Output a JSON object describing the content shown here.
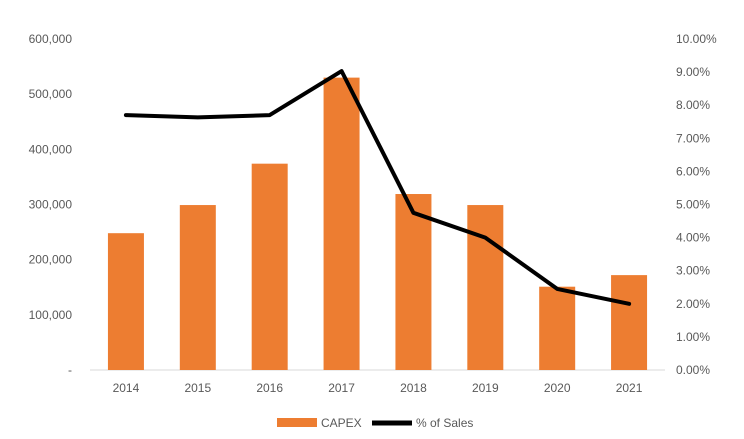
{
  "chart_data": {
    "type": "bar",
    "categories": [
      "2014",
      "2015",
      "2016",
      "2017",
      "2018",
      "2019",
      "2020",
      "2021"
    ],
    "series": [
      {
        "name": "CAPEX",
        "type": "bar",
        "axis": "left",
        "color": "#ED7D31",
        "values": [
          248000,
          299000,
          374000,
          530000,
          319000,
          299000,
          151000,
          172000
        ]
      },
      {
        "name": "% of Sales",
        "type": "line",
        "axis": "right",
        "color": "#000000",
        "values": [
          0.077,
          0.0763,
          0.077,
          0.0903,
          0.0475,
          0.04,
          0.0245,
          0.02
        ]
      }
    ],
    "left_axis": {
      "ylim": [
        0,
        600000
      ],
      "ticks": [
        0,
        100000,
        200000,
        300000,
        400000,
        500000,
        600000
      ],
      "tick_labels": [
        "-",
        "100,000",
        "200,000",
        "300,000",
        "400,000",
        "500,000",
        "600,000"
      ]
    },
    "right_axis": {
      "ylim": [
        0,
        0.1
      ],
      "ticks": [
        0,
        0.01,
        0.02,
        0.03,
        0.04,
        0.05,
        0.06,
        0.07,
        0.08,
        0.09,
        0.1
      ],
      "tick_labels": [
        "0.00%",
        "1.00%",
        "2.00%",
        "3.00%",
        "4.00%",
        "5.00%",
        "6.00%",
        "7.00%",
        "8.00%",
        "9.00%",
        "10.00%"
      ]
    },
    "title": "",
    "xlabel": "",
    "ylabel": "",
    "grid": false,
    "legend": {
      "position": "bottom",
      "entries": [
        "CAPEX",
        "% of Sales"
      ]
    }
  }
}
